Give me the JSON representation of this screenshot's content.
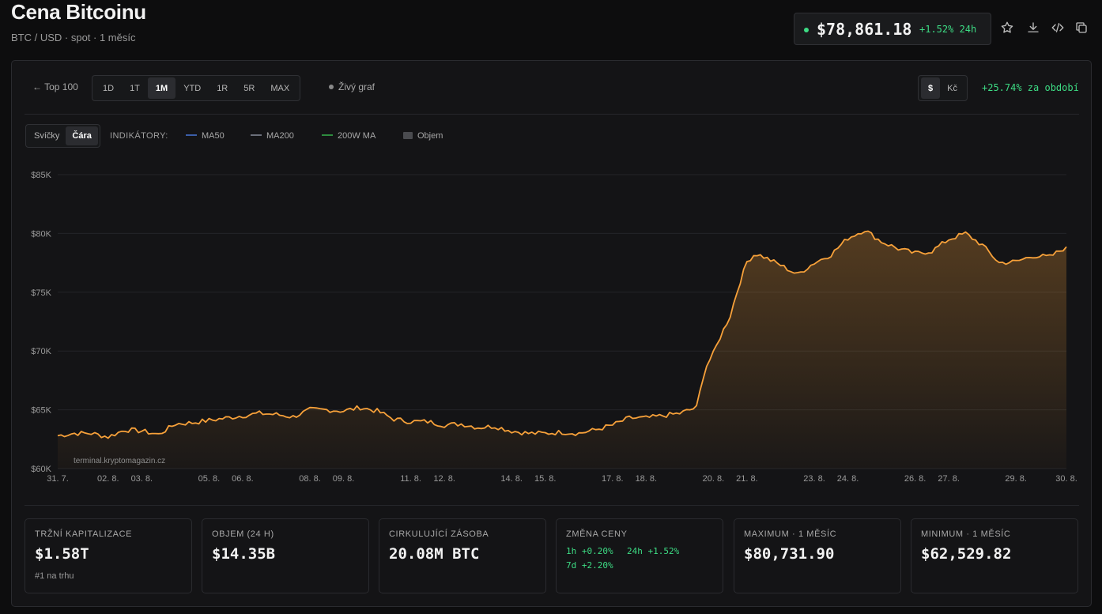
{
  "header": {
    "title": "Cena Bitcoinu",
    "subtitle": "BTC / USD · spot · 1 měsíc",
    "price": "$78,861.18",
    "price_change": "+1.52% 24h",
    "icons": [
      "star-icon",
      "download-icon",
      "code-icon",
      "copy-icon"
    ]
  },
  "toolbar": {
    "back_label": "← Top 100",
    "ranges": [
      "1D",
      "1T",
      "1M",
      "YTD",
      "1R",
      "5R",
      "MAX"
    ],
    "active_range": "1M",
    "live_label": "Živý graf",
    "currencies": [
      "$",
      "Kč"
    ],
    "active_currency": "$",
    "period_change": "+25.74% za období"
  },
  "chart_controls": {
    "types": [
      "Svíčky",
      "Čára"
    ],
    "active_type": "Čára",
    "indicators_label": "INDIKÁTORY:",
    "indicators": [
      {
        "name": "MA50",
        "color": "#3b5ea8"
      },
      {
        "name": "MA200",
        "color": "#6b6f7a"
      },
      {
        "name": "200W MA",
        "color": "#2e8b3e"
      },
      {
        "name": "Objem",
        "color": "#4a4b4f"
      }
    ]
  },
  "watermark": "terminal.kryptomagazin.cz",
  "colors": {
    "line": "#f7a13a",
    "up": "#3ddc84"
  },
  "chart_data": {
    "type": "area",
    "y_ticks": [
      "$85K",
      "$80K",
      "$75K",
      "$70K",
      "$65K",
      "$60K"
    ],
    "ylim": [
      60000,
      85000
    ],
    "x_ticks": [
      "31. 7.",
      "02. 8.",
      "03. 8.",
      "05. 8.",
      "06. 8.",
      "08. 8.",
      "09. 8.",
      "11. 8.",
      "12. 8.",
      "14. 8.",
      "15. 8.",
      "17. 8.",
      "18. 8.",
      "20. 8.",
      "21. 8.",
      "23. 8.",
      "24. 8.",
      "26. 8.",
      "27. 8.",
      "29. 8.",
      "30. 8."
    ],
    "x_tick_days": [
      0,
      1.5,
      2.5,
      4.5,
      5.5,
      7.5,
      8.5,
      10.5,
      11.5,
      13.5,
      14.5,
      16.5,
      17.5,
      19.5,
      20.5,
      22.5,
      23.5,
      25.5,
      26.5,
      28.5,
      30
    ],
    "x_days": [
      0,
      0.5,
      1,
      1.5,
      2,
      2.5,
      3,
      3.5,
      4,
      4.5,
      5,
      5.5,
      6,
      6.5,
      7,
      7.5,
      8,
      8.5,
      9,
      9.5,
      10,
      10.5,
      11,
      11.5,
      12,
      12.5,
      13,
      13.5,
      14,
      14.5,
      15,
      15.5,
      16,
      16.5,
      17,
      17.5,
      18,
      18.5,
      19,
      19.25,
      19.5,
      19.75,
      20,
      20.25,
      20.5,
      20.75,
      21,
      21.5,
      22,
      22.5,
      23,
      23.5,
      24,
      24.5,
      25,
      25.5,
      26,
      26.5,
      27,
      27.5,
      28,
      28.5,
      29,
      29.5,
      30
    ],
    "y_values": [
      62800,
      63000,
      63000,
      62700,
      63300,
      63200,
      62900,
      63800,
      63900,
      64100,
      64300,
      64500,
      64700,
      64600,
      64400,
      65000,
      65000,
      64900,
      65200,
      64900,
      64200,
      64000,
      64000,
      63700,
      63800,
      63500,
      63600,
      63200,
      63000,
      63000,
      63100,
      63000,
      63300,
      63700,
      64300,
      64300,
      64500,
      64700,
      65200,
      68500,
      69800,
      71500,
      73000,
      75500,
      77600,
      78300,
      78000,
      77300,
      76500,
      77500,
      78200,
      79600,
      80300,
      79300,
      78700,
      78300,
      78500,
      79500,
      80000,
      79000,
      77500,
      77600,
      78100,
      78000,
      78861
    ]
  },
  "stats": [
    {
      "label": "Tržní kapitalizace",
      "value": "$1.58T",
      "sub": "#1 na trhu"
    },
    {
      "label": "Objem (24 h)",
      "value": "$14.35B"
    },
    {
      "label": "Cirkulující zásoba",
      "value": "20.08M BTC"
    },
    {
      "label": "Změna ceny",
      "changes": [
        "1h +0.20%",
        "24h +1.52%",
        "7d +2.20%"
      ]
    },
    {
      "label": "Maximum · 1 měsíc",
      "value": "$80,731.90"
    },
    {
      "label": "Minimum · 1 měsíc",
      "value": "$62,529.82"
    }
  ]
}
